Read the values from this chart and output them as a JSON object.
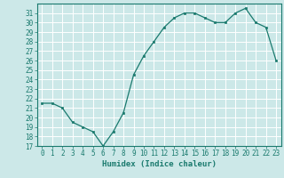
{
  "x": [
    0,
    1,
    2,
    3,
    4,
    5,
    6,
    7,
    8,
    9,
    10,
    11,
    12,
    13,
    14,
    15,
    16,
    17,
    18,
    19,
    20,
    21,
    22,
    23
  ],
  "y": [
    21.5,
    21.5,
    21.0,
    19.5,
    19.0,
    18.5,
    17.0,
    18.5,
    20.5,
    24.5,
    26.5,
    28.0,
    29.5,
    30.5,
    31.0,
    31.0,
    30.5,
    30.0,
    30.0,
    31.0,
    31.5,
    30.0,
    29.5,
    26.0
  ],
  "xlabel": "Humidex (Indice chaleur)",
  "bg_color": "#cce8e8",
  "grid_color": "#ffffff",
  "line_color": "#1a7a6e",
  "marker_color": "#1a7a6e",
  "ylim": [
    17,
    32
  ],
  "xlim": [
    -0.5,
    23.5
  ],
  "yticks": [
    17,
    18,
    19,
    20,
    21,
    22,
    23,
    24,
    25,
    26,
    27,
    28,
    29,
    30,
    31
  ],
  "xticks": [
    0,
    1,
    2,
    3,
    4,
    5,
    6,
    7,
    8,
    9,
    10,
    11,
    12,
    13,
    14,
    15,
    16,
    17,
    18,
    19,
    20,
    21,
    22,
    23
  ],
  "tick_fontsize": 5.5,
  "xlabel_fontsize": 6.5
}
